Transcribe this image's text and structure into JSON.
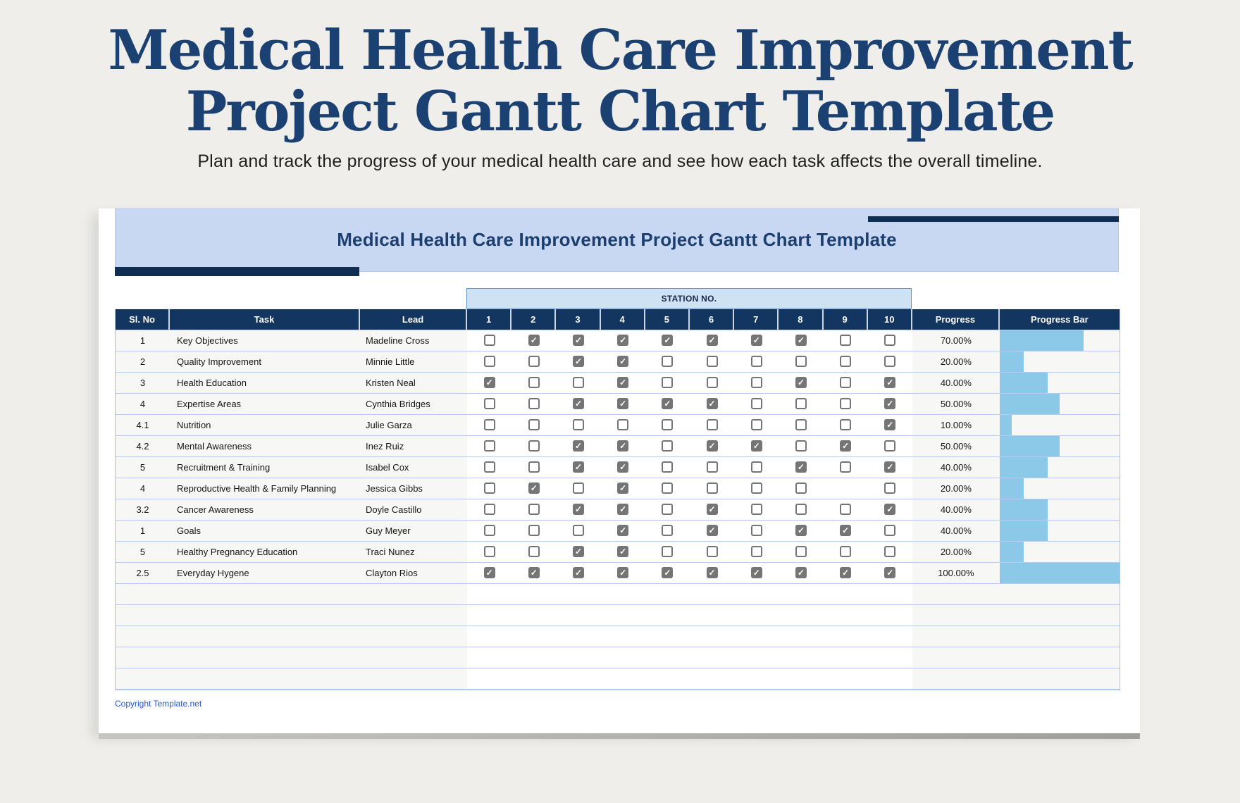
{
  "page": {
    "title_line1": "Medical Health Care Improvement",
    "title_line2": "Project Gantt Chart Template",
    "subtitle": "Plan and track the progress of your medical health care and see how each task affects the overall timeline.",
    "copyright": "Copyright Template.net"
  },
  "sheet": {
    "banner_title": "Medical Health Care Improvement Project Gantt Chart Template",
    "station_group_label": "STATION NO.",
    "columns": {
      "sl_no": "Sl. No",
      "task": "Task",
      "lead": "Lead",
      "stations": [
        "1",
        "2",
        "3",
        "4",
        "5",
        "6",
        "7",
        "8",
        "9",
        "10"
      ],
      "progress": "Progress",
      "progress_bar": "Progress Bar"
    },
    "rows": [
      {
        "sl_no": "1",
        "task": "Key Objectives",
        "lead": "Madeline Cross",
        "stations": [
          false,
          true,
          true,
          true,
          true,
          true,
          true,
          true,
          false,
          false
        ],
        "progress": "70.00%",
        "progress_pct": 70
      },
      {
        "sl_no": "2",
        "task": "Quality Improvement",
        "lead": "Minnie Little",
        "stations": [
          false,
          false,
          true,
          true,
          false,
          false,
          false,
          false,
          false,
          false
        ],
        "progress": "20.00%",
        "progress_pct": 20
      },
      {
        "sl_no": "3",
        "task": "Health Education",
        "lead": "Kristen Neal",
        "stations": [
          true,
          false,
          false,
          true,
          false,
          false,
          false,
          true,
          false,
          true
        ],
        "progress": "40.00%",
        "progress_pct": 40
      },
      {
        "sl_no": "4",
        "task": "Expertise Areas",
        "lead": "Cynthia Bridges",
        "stations": [
          false,
          false,
          true,
          true,
          true,
          true,
          false,
          false,
          false,
          true
        ],
        "progress": "50.00%",
        "progress_pct": 50
      },
      {
        "sl_no": "4.1",
        "task": "Nutrition",
        "lead": "Julie Garza",
        "stations": [
          false,
          false,
          false,
          false,
          false,
          false,
          false,
          false,
          false,
          true
        ],
        "progress": "10.00%",
        "progress_pct": 10
      },
      {
        "sl_no": "4.2",
        "task": "Mental Awareness",
        "lead": "Inez Ruiz",
        "stations": [
          false,
          false,
          true,
          true,
          false,
          true,
          true,
          false,
          true,
          false
        ],
        "progress": "50.00%",
        "progress_pct": 50
      },
      {
        "sl_no": "5",
        "task": "Recruitment & Training",
        "lead": "Isabel Cox",
        "stations": [
          false,
          false,
          true,
          true,
          false,
          false,
          false,
          true,
          false,
          true
        ],
        "progress": "40.00%",
        "progress_pct": 40
      },
      {
        "sl_no": "4",
        "task": "Reproductive Health & Family Planning",
        "lead": "Jessica Gibbs",
        "stations": [
          false,
          true,
          false,
          true,
          false,
          false,
          false,
          false,
          null,
          false
        ],
        "progress": "20.00%",
        "progress_pct": 20
      },
      {
        "sl_no": "3.2",
        "task": "Cancer Awareness",
        "lead": "Doyle Castillo",
        "stations": [
          false,
          false,
          true,
          true,
          false,
          true,
          false,
          false,
          false,
          true
        ],
        "progress": "40.00%",
        "progress_pct": 40
      },
      {
        "sl_no": "1",
        "task": "Goals",
        "lead": "Guy Meyer",
        "stations": [
          false,
          false,
          false,
          true,
          false,
          true,
          false,
          true,
          true,
          false
        ],
        "progress": "40.00%",
        "progress_pct": 40
      },
      {
        "sl_no": "5",
        "task": "Healthy Pregnancy Education",
        "lead": "Traci Nunez",
        "stations": [
          false,
          false,
          true,
          true,
          false,
          false,
          false,
          false,
          false,
          false
        ],
        "progress": "20.00%",
        "progress_pct": 20
      },
      {
        "sl_no": "2.5",
        "task": "Everyday Hygene",
        "lead": "Clayton Rios",
        "stations": [
          true,
          true,
          true,
          true,
          true,
          true,
          true,
          true,
          true,
          true
        ],
        "progress": "100.00%",
        "progress_pct": 100
      }
    ],
    "empty_row_count": 5
  },
  "colors": {
    "page_bg": "#efeeea",
    "title_navy": "#1b4173",
    "banner_bg": "#c9d8f2",
    "accent_bar_navy": "#102e52",
    "table_header_bg": "#12365f",
    "station_box_bg": "#cfe2f3",
    "station_box_border": "#5c93c9",
    "row_alt_bg": "#f7f7f6",
    "row_separator": "#b6ccf1",
    "checkbox_gray": "#757575",
    "progress_fill": "#8cc9e9",
    "link_blue": "#2757d6"
  }
}
